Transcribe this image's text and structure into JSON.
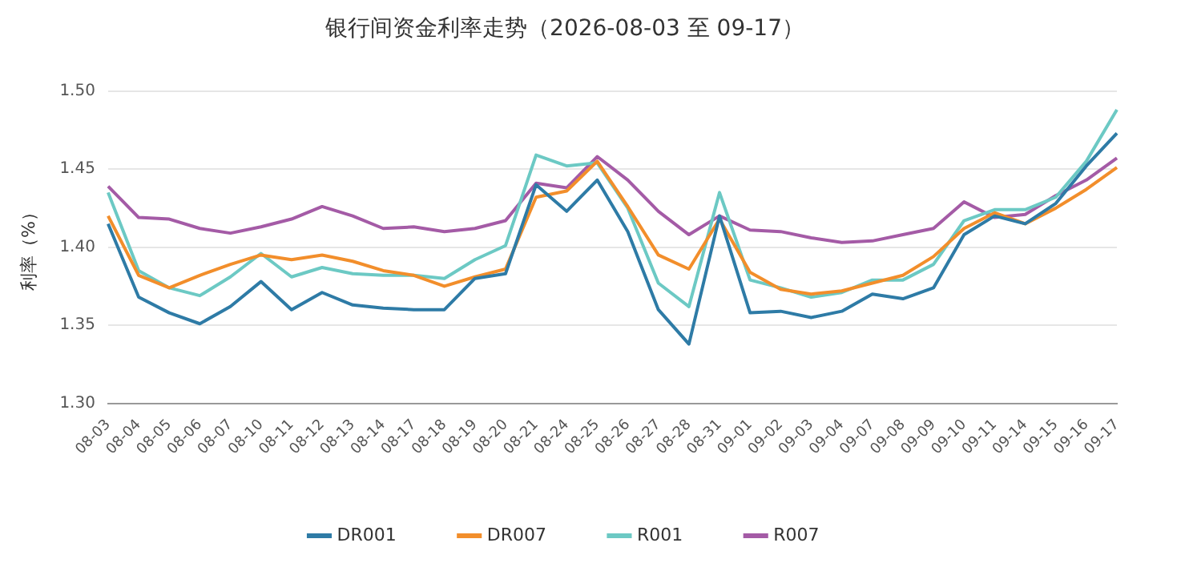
{
  "chart_data": {
    "type": "line",
    "title": "银行间资金利率走势（2026-08-03 至 09-17）",
    "ylabel": "利率（%）",
    "categories": [
      "08-03",
      "08-04",
      "08-05",
      "08-06",
      "08-07",
      "08-10",
      "08-11",
      "08-12",
      "08-13",
      "08-14",
      "08-17",
      "08-18",
      "08-19",
      "08-20",
      "08-21",
      "08-24",
      "08-25",
      "08-26",
      "08-27",
      "08-28",
      "08-31",
      "09-01",
      "09-02",
      "09-03",
      "09-04",
      "09-07",
      "09-08",
      "09-09",
      "09-10",
      "09-11",
      "09-14",
      "09-15",
      "09-16",
      "09-17"
    ],
    "series": [
      {
        "name": "DR001",
        "color": "#2e7ba6",
        "values": [
          1.415,
          1.368,
          1.358,
          1.351,
          1.362,
          1.378,
          1.36,
          1.371,
          1.363,
          1.361,
          1.36,
          1.36,
          1.38,
          1.383,
          1.44,
          1.423,
          1.443,
          1.41,
          1.36,
          1.338,
          1.42,
          1.358,
          1.359,
          1.355,
          1.359,
          1.37,
          1.367,
          1.374,
          1.408,
          1.42,
          1.415,
          1.428,
          1.452,
          1.473
        ]
      },
      {
        "name": "DR007",
        "color": "#f28e2b",
        "values": [
          1.42,
          1.382,
          1.374,
          1.382,
          1.389,
          1.395,
          1.392,
          1.395,
          1.391,
          1.385,
          1.382,
          1.375,
          1.381,
          1.386,
          1.432,
          1.436,
          1.455,
          1.426,
          1.395,
          1.386,
          1.418,
          1.384,
          1.373,
          1.37,
          1.372,
          1.377,
          1.382,
          1.394,
          1.412,
          1.422,
          1.415,
          1.425,
          1.437,
          1.451
        ]
      },
      {
        "name": "R001",
        "color": "#6cc9c4",
        "values": [
          1.435,
          1.385,
          1.374,
          1.369,
          1.381,
          1.396,
          1.381,
          1.387,
          1.383,
          1.382,
          1.382,
          1.38,
          1.392,
          1.401,
          1.459,
          1.452,
          1.454,
          1.425,
          1.377,
          1.362,
          1.435,
          1.379,
          1.374,
          1.368,
          1.371,
          1.379,
          1.379,
          1.389,
          1.417,
          1.424,
          1.424,
          1.432,
          1.455,
          1.488
        ]
      },
      {
        "name": "R007",
        "color": "#a45ba6",
        "values": [
          1.439,
          1.419,
          1.418,
          1.412,
          1.409,
          1.413,
          1.418,
          1.426,
          1.42,
          1.412,
          1.413,
          1.41,
          1.412,
          1.417,
          1.441,
          1.438,
          1.458,
          1.443,
          1.423,
          1.408,
          1.42,
          1.411,
          1.41,
          1.406,
          1.403,
          1.404,
          1.408,
          1.412,
          1.429,
          1.419,
          1.421,
          1.433,
          1.443,
          1.457
        ]
      }
    ],
    "ylim": [
      1.3,
      1.5
    ],
    "yticks": [
      {
        "value": 1.3,
        "label": "1.30"
      },
      {
        "value": 1.35,
        "label": "1.35"
      },
      {
        "value": 1.4,
        "label": "1.40"
      },
      {
        "value": 1.45,
        "label": "1.45"
      },
      {
        "value": 1.5,
        "label": "1.50"
      }
    ],
    "grid": "y",
    "legend": "bottom",
    "marker": "none",
    "line_style": "solid"
  }
}
